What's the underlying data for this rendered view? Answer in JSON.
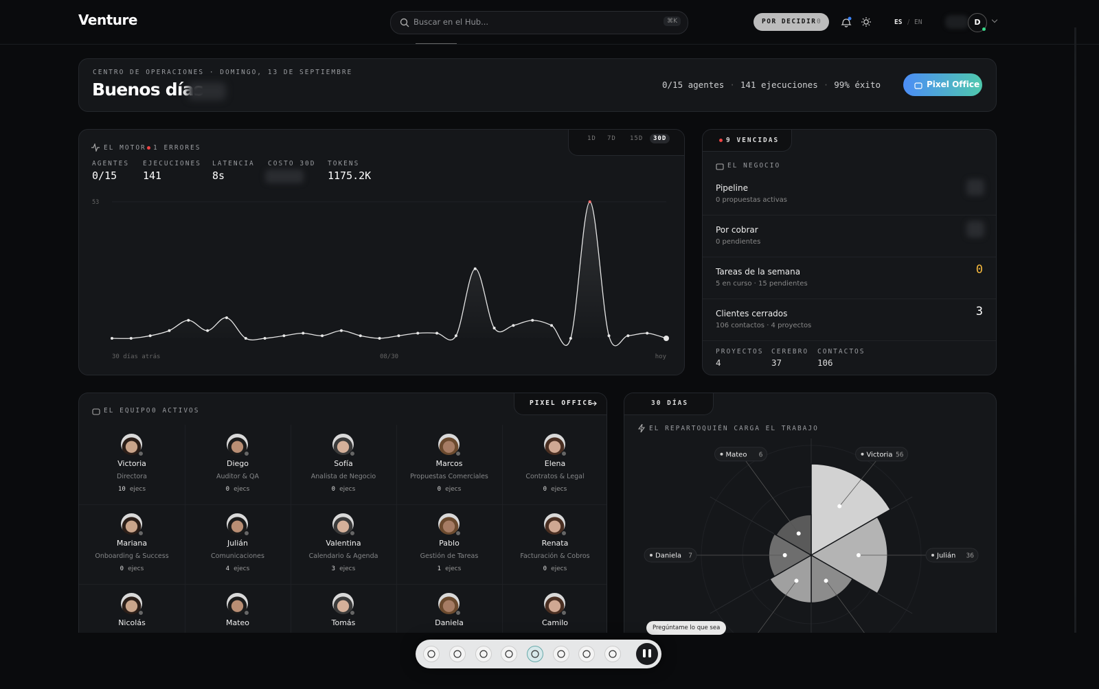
{
  "header": {
    "brand": "Venture",
    "search_placeholder": "Buscar en el Hub...",
    "search_shortcut": "⌘K",
    "decide_label": "POR DECIDIR",
    "decide_count": 0,
    "lang_active": "ES",
    "lang_separator": "/",
    "lang_other": "EN",
    "avatar": "D"
  },
  "hero": {
    "eyebrow": "CENTRO DE OPERACIONES · DOMINGO, 13 DE SEPTIEMBRE",
    "greeting": "Buenos días",
    "stats": [
      "0/15 agentes",
      "141 ejecuciones",
      "99% éxito"
    ],
    "stat_separator": "·",
    "button": "Pixel Office"
  },
  "motor": {
    "title": "EL MOTOR",
    "errors": "1 ERRORES",
    "ranges": [
      "1D",
      "7D",
      "15D",
      "30D"
    ],
    "active_range": "30D",
    "metrics": [
      {
        "label": "AGENTES",
        "value": "0/15"
      },
      {
        "label": "EJECUCIONES",
        "value": 141
      },
      {
        "label": "LATENCIA",
        "value": "8s"
      },
      {
        "label": "COSTO 30D"
      },
      {
        "label": "TOKENS",
        "value": "1175.2K"
      }
    ],
    "chart_data": {
      "type": "line",
      "values": [
        0,
        0,
        1,
        3,
        7,
        3,
        8,
        0,
        0,
        1,
        2,
        1,
        3,
        1,
        0,
        1,
        2,
        2,
        1,
        27,
        4,
        5,
        7,
        5,
        0,
        53,
        1,
        1,
        2,
        0
      ],
      "color": "#e6e6e6",
      "ylim": [
        0,
        53
      ],
      "yticks": [
        53
      ],
      "x_labels": [
        "30 días atrás",
        "08/30",
        "hoy"
      ]
    }
  },
  "negocio": {
    "badge": "9 VENCIDAS",
    "title": "EL NEGOCIO",
    "rows": [
      {
        "title": "Pipeline",
        "detail": "0 propuestas activas"
      },
      {
        "title": "Por cobrar",
        "detail": "0 pendientes"
      },
      {
        "title": "Tareas de la semana",
        "detail": "5 en curso · 15 pendientes",
        "value": 0
      },
      {
        "title": "Clientes cerrados",
        "detail": "106 contactos · 4 proyectos",
        "value": 3
      }
    ],
    "footer": [
      {
        "label": "PROYECTOS",
        "value": 4
      },
      {
        "label": "CEREBRO",
        "value": 37
      },
      {
        "label": "CONTACTOS",
        "value": 106
      }
    ]
  },
  "equipo": {
    "title": "EL EQUIPO",
    "active": "0 ACTIVOS",
    "link": "PIXEL OFFICE",
    "unit": "ejecs",
    "members": [
      {
        "name": "Victoria",
        "role": "Directora",
        "ejecs": 10
      },
      {
        "name": "Diego",
        "role": "Auditor & QA",
        "ejecs": 0
      },
      {
        "name": "Sofía",
        "role": "Analista de Negocio",
        "ejecs": 0
      },
      {
        "name": "Marcos",
        "role": "Propuestas Comerciales",
        "ejecs": 0
      },
      {
        "name": "Elena",
        "role": "Contratos & Legal",
        "ejecs": 0
      },
      {
        "name": "Mariana",
        "role": "Onboarding & Success",
        "ejecs": 0
      },
      {
        "name": "Julián",
        "role": "Comunicaciones",
        "ejecs": 4
      },
      {
        "name": "Valentina",
        "role": "Calendario & Agenda",
        "ejecs": 3
      },
      {
        "name": "Pablo",
        "role": "Gestión de Tareas",
        "ejecs": 1
      },
      {
        "name": "Renata",
        "role": "Facturación & Cobros",
        "ejecs": 0
      },
      {
        "name": "Nicolás"
      },
      {
        "name": "Mateo"
      },
      {
        "name": "Tomás"
      },
      {
        "name": "Daniela"
      },
      {
        "name": "Camilo"
      }
    ]
  },
  "reparto": {
    "range": "30 DÍAS",
    "title": "EL REPARTO",
    "subtitle": "QUIÉN CARGA EL TRABAJO",
    "chart_data": {
      "type": "polar",
      "categories": [
        "Victoria",
        "Julián",
        null,
        null,
        "Daniela",
        "Mateo"
      ],
      "values": [
        56,
        36,
        10,
        10,
        7,
        6
      ],
      "colors": [
        "#d2d2d2",
        "#b4b4b4",
        "#8c8c8c",
        "#a0a0a0",
        "#6e6e6e",
        "#5a5a5a"
      ]
    }
  },
  "assistant": {
    "tooltip": "Pregúntame lo que sea"
  }
}
